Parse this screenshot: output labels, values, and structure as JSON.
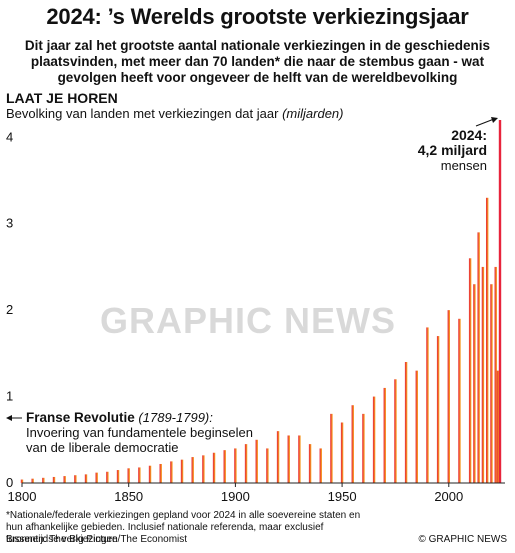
{
  "title": "2024: ’s Werelds grootste verkiezingsjaar",
  "subtitle": "Dit jaar zal het grootste aantal nationale verkiezingen in de geschiedenis plaatsvinden, met meer dan 70 landen* die naar de stembus gaan - wat gevolgen heeft voor ongeveer de helft van de wereldbevolking",
  "section_heading": "LAAT JE HOREN",
  "chart_desc": "Bevolking van landen met verkiezingen dat jaar",
  "chart_desc_unit": "(miljarden)",
  "annotation_2024": {
    "label": "2024:",
    "value": "4,2 miljard",
    "unit": "mensen"
  },
  "french_revolution": {
    "name": "Franse Revolutie",
    "years": "(1789-1799):",
    "line1": "Invoering van fundamentele beginselen",
    "line2": "van de liberale democratie"
  },
  "footnote": "*Nationale/federale verkiezingen gepland voor 2024 in alle soevereine staten en hun afhankelijke gebieden. Inclusief nationale referenda, maar exclusief tussentijdse verkiezingen",
  "sources": "Bronnen: The Big Picture/The Economist",
  "credit": "© GRAPHIC NEWS",
  "watermark": "GRAPHIC NEWS",
  "colors": {
    "bar_low": "#e8243c",
    "bar_high": "#f7a81b",
    "bar_2024": "#e8243c"
  },
  "chart_data": {
    "type": "bar",
    "title": "LAAT JE HOREN",
    "ylabel": "Bevolking van landen met verkiezingen dat jaar (miljarden)",
    "xlim": [
      1800,
      2024
    ],
    "ylim": [
      0,
      4.2
    ],
    "x_ticks": [
      1800,
      1850,
      1900,
      1950,
      2000
    ],
    "y_ticks": [
      0,
      1,
      2,
      3,
      4
    ],
    "grid": false,
    "series": [
      {
        "x": [
          1800,
          1805,
          1810,
          1815,
          1820,
          1825,
          1830,
          1835,
          1840,
          1845,
          1850,
          1855,
          1860,
          1865,
          1870,
          1875,
          1880,
          1885,
          1890,
          1895,
          1900,
          1905,
          1910,
          1915,
          1920,
          1925,
          1930,
          1935,
          1940,
          1945,
          1950,
          1955,
          1960,
          1965,
          1970,
          1975,
          1980,
          1985,
          1990,
          1995,
          2000,
          2005,
          2010,
          2012,
          2014,
          2016,
          2018,
          2020,
          2022,
          2023,
          2024
        ],
        "values": [
          0.04,
          0.05,
          0.06,
          0.07,
          0.08,
          0.09,
          0.1,
          0.12,
          0.13,
          0.15,
          0.17,
          0.18,
          0.2,
          0.22,
          0.25,
          0.27,
          0.3,
          0.32,
          0.35,
          0.38,
          0.4,
          0.45,
          0.5,
          0.4,
          0.6,
          0.55,
          0.55,
          0.45,
          0.4,
          0.8,
          0.7,
          0.9,
          0.8,
          1.0,
          1.1,
          1.2,
          1.4,
          1.3,
          1.8,
          1.7,
          2.0,
          1.9,
          2.6,
          2.3,
          2.9,
          2.5,
          3.3,
          2.3,
          2.5,
          1.3,
          4.2
        ]
      }
    ]
  }
}
